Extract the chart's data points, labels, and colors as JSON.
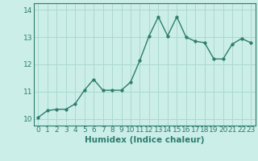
{
  "xlabel": "Humidex (Indice chaleur)",
  "x_values": [
    0,
    1,
    2,
    3,
    4,
    5,
    6,
    7,
    8,
    9,
    10,
    11,
    12,
    13,
    14,
    15,
    16,
    17,
    18,
    19,
    20,
    21,
    22,
    23
  ],
  "y_values": [
    10.05,
    10.3,
    10.35,
    10.35,
    10.55,
    11.05,
    11.45,
    11.05,
    11.05,
    11.05,
    11.35,
    12.15,
    13.05,
    13.75,
    13.05,
    13.75,
    13.0,
    12.85,
    12.8,
    12.2,
    12.2,
    12.75,
    12.95,
    12.8
  ],
  "line_color": "#2d7d6e",
  "marker_size": 2.5,
  "line_width": 1.0,
  "bg_color": "#cceee8",
  "grid_color": "#aad8d0",
  "ylim": [
    9.75,
    14.25
  ],
  "xlim": [
    -0.5,
    23.5
  ],
  "yticks": [
    10,
    11,
    12,
    13,
    14
  ],
  "xticks": [
    0,
    1,
    2,
    3,
    4,
    5,
    6,
    7,
    8,
    9,
    10,
    11,
    12,
    13,
    14,
    15,
    16,
    17,
    18,
    19,
    20,
    21,
    22,
    23
  ],
  "tick_fontsize": 6.5,
  "xlabel_fontsize": 7.5,
  "axis_color": "#2d7d6e"
}
